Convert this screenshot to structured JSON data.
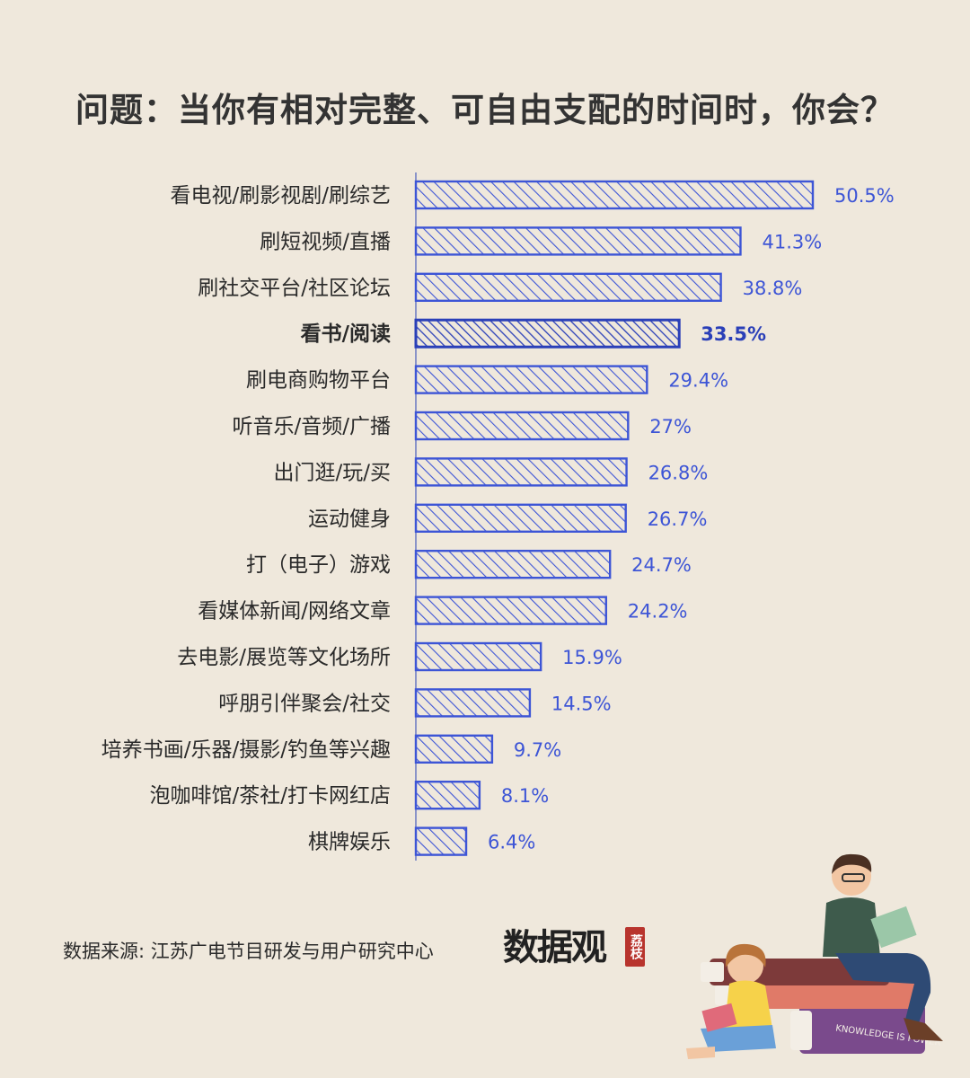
{
  "title": "问题：当你有相对完整、可自由支配的时间时，你会？",
  "source": "数据来源: 江苏广电节目研发与用户研究中心",
  "logo": {
    "text": "数据观",
    "stamp": "荔枝"
  },
  "illustration": {
    "book_spine_text": "KNOWLEDGE IS POWER"
  },
  "colors": {
    "bar": "#3d55d6",
    "highlight": "#2a3fb8",
    "label": "#2a2a2a",
    "value": "#3d55d6"
  },
  "chart_data": {
    "type": "bar",
    "orientation": "horizontal",
    "unit": "%",
    "highlight_category": "看书/阅读",
    "categories": [
      "看电视/刷影视剧/刷综艺",
      "刷短视频/直播",
      "刷社交平台/社区论坛",
      "看书/阅读",
      "刷电商购物平台",
      "听音乐/音频/广播",
      "出门逛/玩/买",
      "运动健身",
      "打（电子）游戏",
      "看媒体新闻/网络文章",
      "去电影/展览等文化场所",
      "呼朋引伴聚会/社交",
      "培养书画/乐器/摄影/钓鱼等兴趣",
      "泡咖啡馆/茶社/打卡网红店",
      "棋牌娱乐"
    ],
    "values": [
      50.5,
      41.3,
      38.8,
      33.5,
      29.4,
      27,
      26.8,
      26.7,
      24.7,
      24.2,
      15.9,
      14.5,
      9.7,
      8.1,
      6.4
    ],
    "value_labels": [
      "50.5%",
      "41.3%",
      "38.8%",
      "33.5%",
      "29.4%",
      "27%",
      "26.8%",
      "26.7%",
      "24.7%",
      "24.2%",
      "15.9%",
      "14.5%",
      "9.7%",
      "8.1%",
      "6.4%"
    ],
    "xlim": [
      0,
      50.5
    ],
    "grid": false,
    "legend": "none"
  }
}
